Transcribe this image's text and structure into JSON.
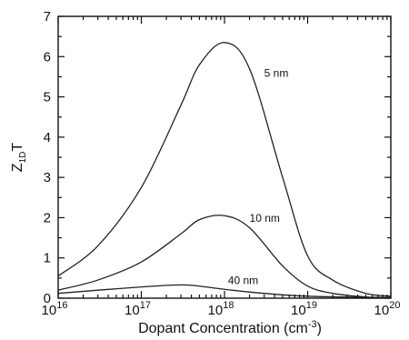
{
  "chart_data": {
    "type": "line",
    "x_scale": "log",
    "xlim": [
      "1e16",
      "1e20"
    ],
    "ylim": [
      0,
      7
    ],
    "xlabel": "Dopant Concentration (cm",
    "xlabel_sup": "-3",
    "xlabel_close": ")",
    "ylabel": "Z",
    "ylabel_sub": "1D",
    "ylabel_tail": "T",
    "x_ticks": [
      {
        "base": "10",
        "exp": "16"
      },
      {
        "base": "10",
        "exp": "17"
      },
      {
        "base": "10",
        "exp": "18"
      },
      {
        "base": "10",
        "exp": "19"
      },
      {
        "base": "10",
        "exp": "20"
      }
    ],
    "y_ticks": [
      "0",
      "1",
      "2",
      "3",
      "4",
      "5",
      "6",
      "7"
    ],
    "grid": false,
    "series": [
      {
        "name": "5 nm",
        "x": [
          "1e16",
          "3e16",
          "1e17",
          "3e17",
          "5e17",
          "1e18",
          "2e18",
          "5e18",
          "1e19",
          "2e19",
          "5e19",
          "1e20"
        ],
        "y": [
          0.55,
          1.3,
          2.75,
          4.8,
          5.8,
          6.35,
          5.7,
          3.0,
          1.05,
          0.45,
          0.12,
          0.05
        ]
      },
      {
        "name": "10 nm",
        "x": [
          "1e16",
          "3e16",
          "1e17",
          "3e17",
          "5e17",
          "1e18",
          "2e18",
          "5e18",
          "1e19",
          "2e19",
          "5e19",
          "1e20"
        ],
        "y": [
          0.2,
          0.45,
          0.9,
          1.6,
          1.95,
          2.05,
          1.75,
          0.8,
          0.3,
          0.12,
          0.03,
          0.02
        ]
      },
      {
        "name": "40 nm",
        "x": [
          "1e16",
          "1e17",
          "3e17",
          "5e17",
          "1e18",
          "3e18",
          "1e19",
          "1e20"
        ],
        "y": [
          0.12,
          0.28,
          0.33,
          0.3,
          0.22,
          0.12,
          0.05,
          0.01
        ]
      }
    ],
    "curve_labels": [
      {
        "series": "5 nm",
        "text": "5 nm",
        "x": "3e18",
        "y": 5.5
      },
      {
        "series": "10 nm",
        "text": "10 nm",
        "x": "2e18",
        "y": 1.9
      },
      {
        "series": "40 nm",
        "text": "40 nm",
        "x": "1.1e18",
        "y": 0.35
      }
    ]
  }
}
